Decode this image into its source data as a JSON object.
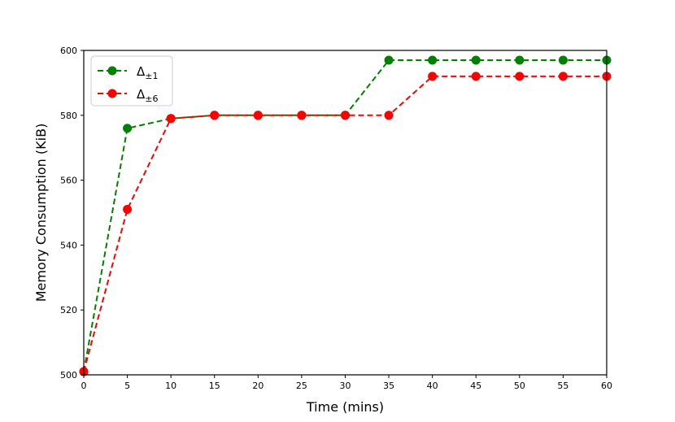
{
  "chart_data": {
    "type": "line",
    "xlabel": "Time (mins)",
    "ylabel": "Memory Consumption (KiB)",
    "xlim": [
      0,
      60
    ],
    "ylim": [
      500,
      600
    ],
    "xticks": [
      0,
      5,
      10,
      15,
      20,
      25,
      30,
      35,
      40,
      45,
      50,
      55,
      60
    ],
    "yticks": [
      500,
      520,
      540,
      560,
      580,
      600
    ],
    "grid": false,
    "legend_position": "top-left",
    "x": [
      0,
      5,
      10,
      15,
      20,
      25,
      30,
      35,
      40,
      45,
      50,
      55,
      60
    ],
    "series": [
      {
        "name": "Δ±1",
        "name_main": "Δ",
        "name_sub": "±1",
        "color": "#008000",
        "line_style": "dashed",
        "marker": "circle",
        "values": [
          501,
          576,
          579,
          580,
          580,
          580,
          580,
          597,
          597,
          597,
          597,
          597,
          597
        ]
      },
      {
        "name": "Δ±6",
        "name_main": "Δ",
        "name_sub": "±6",
        "color": "#ff0000",
        "line_style": "dashed",
        "marker": "circle",
        "values": [
          501,
          551,
          579,
          580,
          580,
          580,
          580,
          580,
          592,
          592,
          592,
          592,
          592
        ]
      }
    ]
  }
}
